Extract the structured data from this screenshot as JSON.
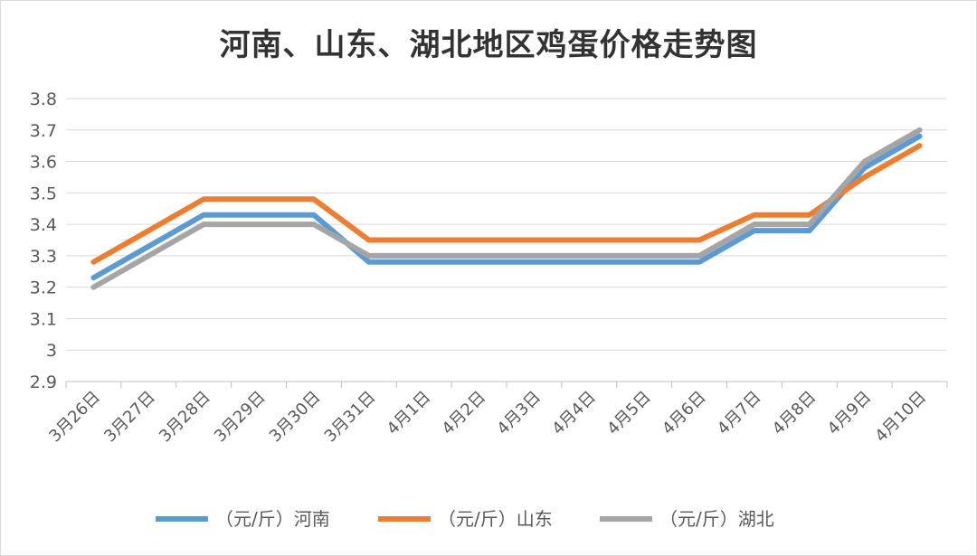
{
  "chart_data": {
    "type": "line",
    "title": "河南、山东、湖北地区鸡蛋价格走势图",
    "xlabel": "",
    "ylabel": "",
    "categories": [
      "3月26日",
      "3月27日",
      "3月28日",
      "3月29日",
      "3月30日",
      "3月31日",
      "4月1日",
      "4月2日",
      "4月3日",
      "4月4日",
      "4月5日",
      "4月6日",
      "4月7日",
      "4月8日",
      "4月9日",
      "4月10日"
    ],
    "ylim": [
      2.9,
      3.8
    ],
    "yticks": [
      "3.8",
      "3.7",
      "3.6",
      "3.5",
      "3.4",
      "3.3",
      "3.2",
      "3.1",
      "3",
      "2.9"
    ],
    "grid": true,
    "legend": "bottom",
    "series": [
      {
        "name": "（元/斤）河南",
        "color": "#5b9bd5",
        "values": [
          3.23,
          3.33,
          3.43,
          3.43,
          3.43,
          3.28,
          3.28,
          3.28,
          3.28,
          3.28,
          3.28,
          3.28,
          3.38,
          3.38,
          3.58,
          3.68
        ]
      },
      {
        "name": "（元/斤）山东",
        "color": "#ed7d31",
        "values": [
          3.28,
          3.38,
          3.48,
          3.48,
          3.48,
          3.35,
          3.35,
          3.35,
          3.35,
          3.35,
          3.35,
          3.35,
          3.43,
          3.43,
          3.55,
          3.65
        ]
      },
      {
        "name": "（元/斤）湖北",
        "color": "#a5a5a5",
        "values": [
          3.2,
          3.3,
          3.4,
          3.4,
          3.4,
          3.3,
          3.3,
          3.3,
          3.3,
          3.3,
          3.3,
          3.3,
          3.4,
          3.4,
          3.6,
          3.7
        ]
      }
    ]
  }
}
